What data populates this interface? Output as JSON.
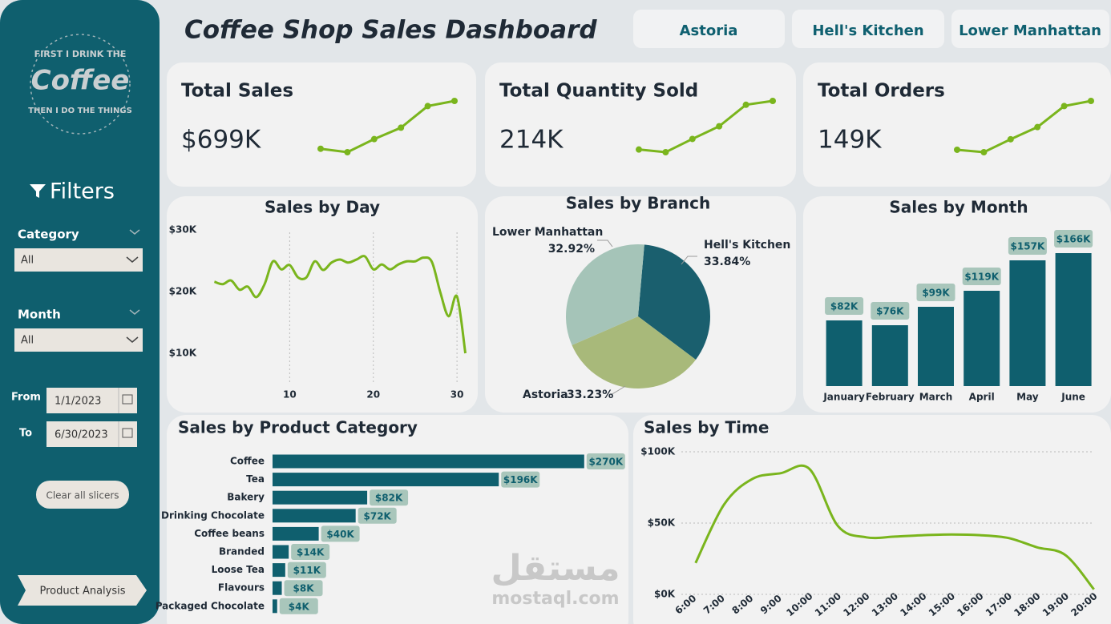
{
  "header": {
    "title": "Coffee Shop Sales Dashboard",
    "branches": [
      "Astoria",
      "Hell's Kitchen",
      "Lower Manhattan"
    ]
  },
  "sidebar": {
    "logo": [
      "FIRST I DRINK THE",
      "Coffee",
      "THEN I DO THE THINGS"
    ],
    "filters_title": "Filters",
    "slicers": [
      {
        "label": "Category",
        "value": "All"
      },
      {
        "label": "Month",
        "value": "All"
      }
    ],
    "date_range": {
      "from_label": "From",
      "from": "1/1/2023",
      "to_label": "To",
      "to": "6/30/2023"
    },
    "clear_button": "Clear all slicers",
    "page_button": "Product Analysis"
  },
  "kpis": [
    {
      "title": "Total Sales",
      "value": "$699K",
      "trend": [
        82,
        76,
        99,
        119,
        157,
        166
      ]
    },
    {
      "title": "Total Quantity Sold",
      "value": "214K",
      "trend": [
        24.9,
        23.5,
        30.4,
        37,
        48.2,
        50.2
      ]
    },
    {
      "title": "Total Orders",
      "value": "149K",
      "trend": [
        17.3,
        16.4,
        21.2,
        25.7,
        33.5,
        35.4
      ]
    }
  ],
  "watermark": [
    "مستقل",
    "mostaql.com"
  ],
  "chart_data": [
    {
      "type": "line",
      "title": "Sales by Day",
      "x": [
        1,
        2,
        3,
        4,
        5,
        6,
        7,
        8,
        9,
        10,
        11,
        12,
        13,
        14,
        15,
        16,
        17,
        18,
        19,
        20,
        21,
        22,
        23,
        24,
        25,
        26,
        27,
        28,
        29,
        30,
        31
      ],
      "values": [
        21600,
        21200,
        21800,
        20300,
        20800,
        19100,
        21200,
        24900,
        23600,
        24300,
        22300,
        22300,
        24900,
        23500,
        24700,
        25200,
        24700,
        25200,
        25700,
        23600,
        24400,
        23600,
        24400,
        24900,
        24900,
        25500,
        24800,
        19900,
        16000,
        19200,
        10000
      ],
      "color": "#7ab51d",
      "xlim": [
        0,
        32
      ],
      "xticks": [
        10,
        20,
        30
      ],
      "ylim": [
        5000,
        31000
      ],
      "yticks": [
        {
          "value": 10000,
          "label": "$10K"
        },
        {
          "value": 20000,
          "label": "$20K"
        },
        {
          "value": 30000,
          "label": "$30K"
        }
      ],
      "grid": true
    },
    {
      "type": "pie",
      "title": "Sales by Branch",
      "categories": [
        "Hell's Kitchen",
        "Astoria",
        "Lower Manhattan"
      ],
      "values": [
        33.84,
        33.23,
        32.92
      ],
      "value_labels": [
        "33.84%",
        "33.23%",
        "32.92%"
      ],
      "colors": [
        "#1a5f6e",
        "#a8b97a",
        "#a5c4b8"
      ]
    },
    {
      "type": "bar",
      "title": "Sales by Month",
      "categories": [
        "January",
        "February",
        "March",
        "April",
        "May",
        "June"
      ],
      "values": [
        82,
        76,
        99,
        119,
        157,
        166
      ],
      "value_labels": [
        "$82K",
        "$76K",
        "$99K",
        "$119K",
        "$157K",
        "$166K"
      ],
      "color": "#0f5f6e",
      "orientation": "vertical"
    },
    {
      "type": "bar",
      "title": "Sales by Product Category",
      "categories": [
        "Coffee",
        "Tea",
        "Bakery",
        "Drinking Chocolate",
        "Coffee beans",
        "Branded",
        "Loose Tea",
        "Flavours",
        "Packaged Chocolate"
      ],
      "values": [
        270,
        196,
        82,
        72,
        40,
        14,
        11,
        8,
        4
      ],
      "value_labels": [
        "$270K",
        "$196K",
        "$82K",
        "$72K",
        "$40K",
        "$14K",
        "$11K",
        "$8K",
        "$4K"
      ],
      "color": "#0f5f6e",
      "orientation": "horizontal"
    },
    {
      "type": "line",
      "title": "Sales by Time",
      "categories": [
        "6:00",
        "7:00",
        "8:00",
        "9:00",
        "10:00",
        "11:00",
        "12:00",
        "13:00",
        "14:00",
        "15:00",
        "16:00",
        "17:00",
        "18:00",
        "19:00",
        "20:00"
      ],
      "values": [
        22000,
        63000,
        81000,
        85000,
        88000,
        48000,
        40000,
        40500,
        41500,
        42000,
        41500,
        39500,
        33000,
        27500,
        3500
      ],
      "color": "#7ab51d",
      "ylim": [
        0,
        100000
      ],
      "yticks": [
        {
          "value": 0,
          "label": "$0K"
        },
        {
          "value": 50000,
          "label": "$50K"
        },
        {
          "value": 100000,
          "label": "$100K"
        }
      ],
      "grid": true
    }
  ]
}
